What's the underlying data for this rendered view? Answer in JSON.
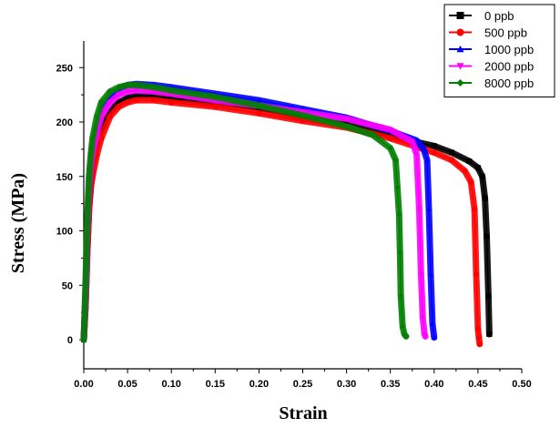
{
  "chart_data": {
    "type": "line",
    "title": "",
    "xlabel": "Strain",
    "ylabel": "Stress (MPa)",
    "xlim": [
      0.0,
      0.5
    ],
    "ylim": [
      -25,
      275
    ],
    "xticks": [
      0.0,
      0.05,
      0.1,
      0.15,
      0.2,
      0.25,
      0.3,
      0.35,
      0.4,
      0.45,
      0.5
    ],
    "xtick_labels": [
      "0.00",
      "0.05",
      "0.10",
      "0.15",
      "0.20",
      "0.25",
      "0.30",
      "0.35",
      "0.40",
      "0.45",
      "0.50"
    ],
    "yticks": [
      0,
      50,
      100,
      150,
      200,
      250
    ],
    "ytick_labels": [
      "0",
      "50",
      "100",
      "150",
      "200",
      "250"
    ],
    "grid": false,
    "legend_position": "top-right",
    "series": [
      {
        "name": "0 ppb",
        "color": "#000000",
        "marker": "square",
        "x": [
          0.0,
          0.002,
          0.004,
          0.006,
          0.008,
          0.01,
          0.015,
          0.02,
          0.03,
          0.04,
          0.05,
          0.06,
          0.08,
          0.1,
          0.15,
          0.2,
          0.25,
          0.3,
          0.35,
          0.4,
          0.42,
          0.44,
          0.45,
          0.455,
          0.458,
          0.46,
          0.462,
          0.463,
          0.463
        ],
        "y": [
          0,
          30,
          80,
          120,
          140,
          160,
          180,
          195,
          210,
          218,
          222,
          224,
          224,
          222,
          218,
          213,
          205,
          198,
          187,
          178,
          172,
          164,
          158,
          150,
          130,
          95,
          40,
          5,
          5
        ]
      },
      {
        "name": "500 ppb",
        "color": "#ff0000",
        "marker": "circle",
        "x": [
          0.0,
          0.002,
          0.004,
          0.006,
          0.008,
          0.01,
          0.015,
          0.02,
          0.03,
          0.04,
          0.05,
          0.06,
          0.08,
          0.1,
          0.15,
          0.2,
          0.25,
          0.3,
          0.35,
          0.4,
          0.42,
          0.435,
          0.442,
          0.446,
          0.448,
          0.45,
          0.451,
          0.452,
          0.452
        ],
        "y": [
          0,
          30,
          80,
          120,
          140,
          150,
          170,
          185,
          205,
          214,
          218,
          220,
          220,
          218,
          214,
          208,
          201,
          195,
          185,
          172,
          165,
          155,
          145,
          120,
          60,
          10,
          2,
          -4,
          -4
        ]
      },
      {
        "name": "1000 ppb",
        "color": "#0000ff",
        "marker": "triangle",
        "x": [
          0.0,
          0.002,
          0.004,
          0.006,
          0.008,
          0.01,
          0.015,
          0.02,
          0.03,
          0.04,
          0.05,
          0.06,
          0.08,
          0.1,
          0.15,
          0.2,
          0.25,
          0.3,
          0.35,
          0.38,
          0.388,
          0.392,
          0.394,
          0.396,
          0.398,
          0.4,
          0.4
        ],
        "y": [
          0,
          40,
          100,
          140,
          160,
          175,
          195,
          210,
          222,
          230,
          234,
          235,
          234,
          232,
          226,
          220,
          212,
          204,
          192,
          183,
          175,
          165,
          120,
          60,
          15,
          2,
          2
        ]
      },
      {
        "name": "2000 ppb",
        "color": "#ff00ff",
        "marker": "triangle-down",
        "x": [
          0.0,
          0.002,
          0.004,
          0.006,
          0.008,
          0.01,
          0.015,
          0.02,
          0.03,
          0.04,
          0.05,
          0.06,
          0.08,
          0.1,
          0.15,
          0.2,
          0.25,
          0.3,
          0.35,
          0.375,
          0.38,
          0.383,
          0.385,
          0.387,
          0.389,
          0.39,
          0.39
        ],
        "y": [
          0,
          40,
          100,
          140,
          160,
          172,
          190,
          205,
          218,
          225,
          228,
          229,
          228,
          226,
          220,
          215,
          209,
          203,
          193,
          182,
          170,
          120,
          60,
          20,
          5,
          3,
          3
        ]
      },
      {
        "name": "8000 ppb",
        "color": "#008000",
        "marker": "diamond",
        "x": [
          0.0,
          0.002,
          0.004,
          0.006,
          0.008,
          0.01,
          0.015,
          0.02,
          0.03,
          0.04,
          0.05,
          0.06,
          0.08,
          0.1,
          0.15,
          0.2,
          0.25,
          0.3,
          0.33,
          0.35,
          0.356,
          0.358,
          0.36,
          0.361,
          0.362,
          0.364,
          0.366,
          0.368,
          0.368
        ],
        "y": [
          0,
          50,
          110,
          150,
          170,
          185,
          205,
          218,
          228,
          232,
          234,
          234,
          232,
          229,
          223,
          215,
          206,
          196,
          188,
          176,
          165,
          140,
          115,
          80,
          40,
          12,
          5,
          3,
          3
        ]
      }
    ]
  }
}
